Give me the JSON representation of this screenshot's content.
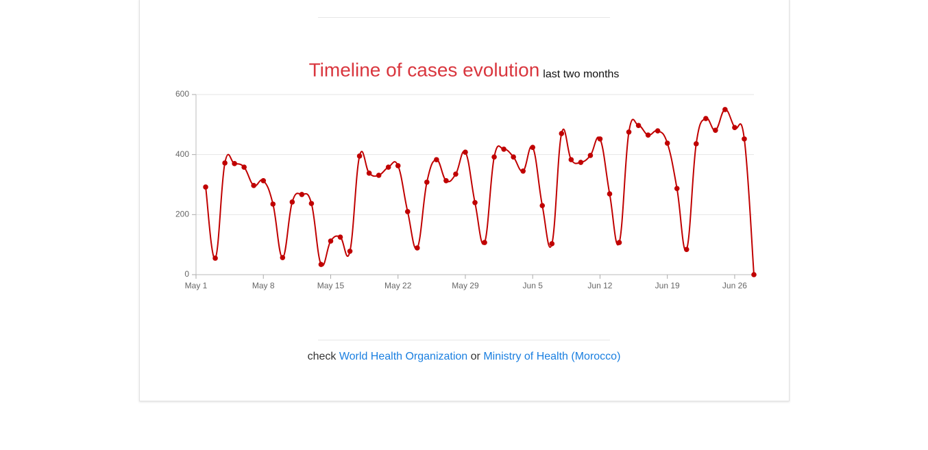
{
  "chart_data": {
    "type": "line",
    "title": "Timeline of cases evolution",
    "subtitle": "last two months",
    "x": [
      "May 2",
      "May 3",
      "May 4",
      "May 5",
      "May 6",
      "May 7",
      "May 8",
      "May 9",
      "May 10",
      "May 11",
      "May 12",
      "May 13",
      "May 14",
      "May 15",
      "May 16",
      "May 17",
      "May 18",
      "May 19",
      "May 20",
      "May 21",
      "May 22",
      "May 23",
      "May 24",
      "May 25",
      "May 26",
      "May 27",
      "May 28",
      "May 29",
      "May 30",
      "May 31",
      "Jun 1",
      "Jun 2",
      "Jun 3",
      "Jun 4",
      "Jun 5",
      "Jun 6",
      "Jun 7",
      "Jun 8",
      "Jun 9",
      "Jun 10",
      "Jun 11",
      "Jun 12",
      "Jun 13",
      "Jun 14",
      "Jun 15",
      "Jun 16",
      "Jun 17",
      "Jun 18",
      "Jun 19",
      "Jun 20",
      "Jun 21",
      "Jun 22",
      "Jun 23",
      "Jun 24",
      "Jun 25",
      "Jun 26",
      "Jun 27",
      "Jun 28"
    ],
    "values": [
      292,
      55,
      372,
      370,
      358,
      297,
      313,
      235,
      57,
      242,
      267,
      237,
      34,
      112,
      125,
      78,
      395,
      338,
      331,
      358,
      363,
      210,
      89,
      308,
      383,
      313,
      335,
      408,
      240,
      107,
      392,
      418,
      392,
      345,
      424,
      230,
      103,
      470,
      383,
      374,
      397,
      452,
      269,
      107,
      475,
      497,
      465,
      479,
      438,
      287,
      84,
      436,
      520,
      481,
      550,
      490,
      452,
      0
    ],
    "color": "#c00000",
    "xlim": [
      "May 1",
      "Jun 28"
    ],
    "xticks": [
      "May 1",
      "May 8",
      "May 15",
      "May 22",
      "May 29",
      "Jun 5",
      "Jun 12",
      "Jun 19",
      "Jun 26"
    ],
    "ylim": [
      0,
      600
    ],
    "yticks": [
      0,
      200,
      400,
      600
    ],
    "grid": true
  },
  "footer": {
    "prefix": "check",
    "link1": "World Health Organization",
    "joiner": "or",
    "link2": "Ministry of Health (Morocco)"
  }
}
